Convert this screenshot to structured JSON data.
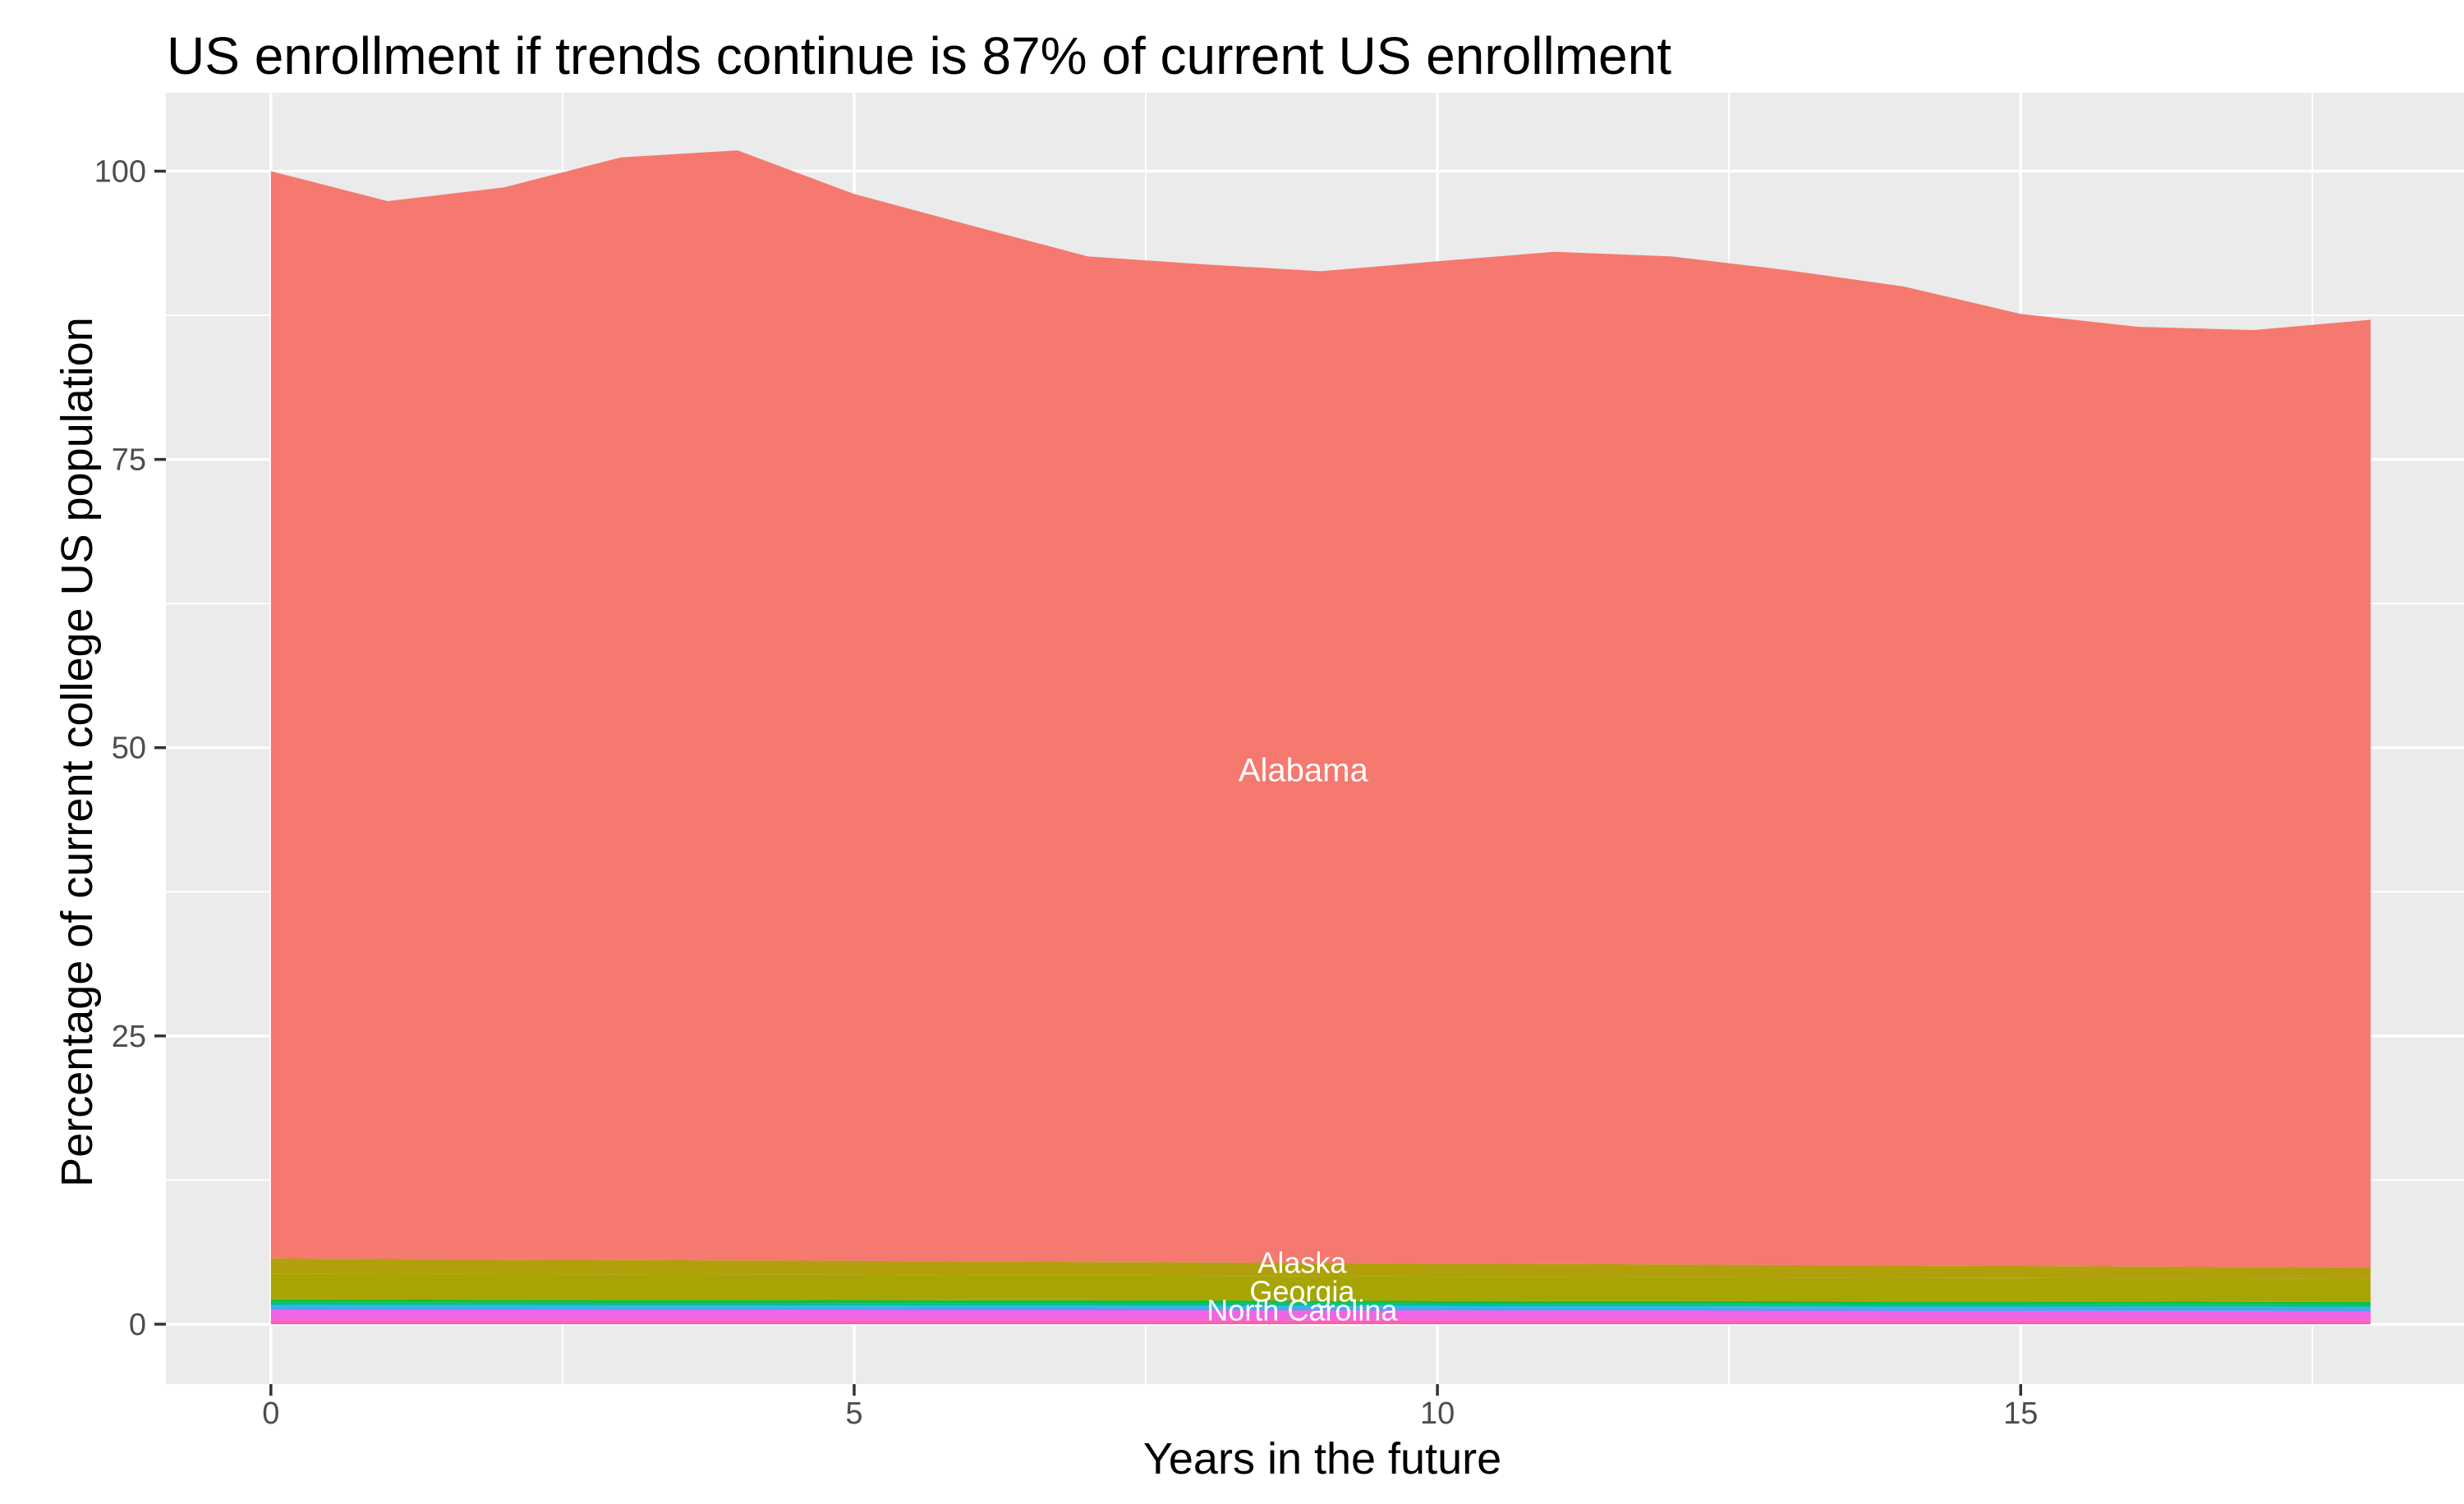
{
  "title": "US enrollment if trends continue is 87% of current US enrollment",
  "axes": {
    "x": {
      "title": "Years in the future",
      "tick_values": [
        0,
        5,
        10,
        15
      ],
      "tick_labels": [
        "0",
        "5",
        "10",
        "15"
      ],
      "minor_tick_values": [
        2.5,
        7.5,
        12.5,
        17.5
      ],
      "panel_range": [
        -0.9,
        18.92
      ]
    },
    "y": {
      "title": "Percentage of current college US population",
      "tick_values": [
        0,
        25,
        50,
        75,
        100
      ],
      "tick_labels": [
        "0",
        "25",
        "50",
        "75",
        "100"
      ],
      "minor_tick_values": [
        12.5,
        37.5,
        62.5,
        87.5
      ],
      "panel_range": [
        -5.2,
        106.8
      ]
    }
  },
  "colors": {
    "panel_bg": "#EBEBEB",
    "grid": "#FFFFFF",
    "tick_mark": "#333333",
    "tick_label": "#4D4D4D",
    "title_text": "#000000",
    "area_label_text": "#FFFFFF"
  },
  "chart_data": {
    "type": "area",
    "stacked": true,
    "title": "US enrollment if trends continue is 87% of current US enrollment",
    "xlabel": "Years in the future",
    "ylabel": "Percentage of current college US population",
    "xlim": [
      0,
      18
    ],
    "ylim": [
      0,
      100
    ],
    "grid": true,
    "legend": false,
    "x": [
      0,
      1,
      2,
      3,
      4,
      5,
      6,
      7,
      8,
      9,
      10,
      11,
      12,
      13,
      14,
      15,
      16,
      17,
      18
    ],
    "series": [
      {
        "name": null,
        "color_key": "pink-band",
        "color": "#FB61AB",
        "values": [
          0.33,
          0.33,
          0.33,
          0.33,
          0.33,
          0.33,
          0.33,
          0.33,
          0.33,
          0.33,
          0.33,
          0.33,
          0.33,
          0.33,
          0.33,
          0.33,
          0.33,
          0.33,
          0.33
        ]
      },
      {
        "name": "North Carolina",
        "color_key": "magenta-band",
        "color": "#F263E6",
        "values": [
          0.92,
          0.91,
          0.91,
          0.9,
          0.9,
          0.89,
          0.88,
          0.88,
          0.87,
          0.86,
          0.86,
          0.85,
          0.85,
          0.84,
          0.83,
          0.83,
          0.82,
          0.82,
          0.81
        ]
      },
      {
        "name": null,
        "color_key": "blue-band",
        "color": "#4D9EF0",
        "values": [
          0.21,
          0.21,
          0.21,
          0.21,
          0.21,
          0.21,
          0.21,
          0.21,
          0.21,
          0.21,
          0.2,
          0.2,
          0.2,
          0.2,
          0.2,
          0.2,
          0.2,
          0.2,
          0.2
        ]
      },
      {
        "name": null,
        "color_key": "cyan-band",
        "color": "#2CB9EA",
        "values": [
          0.21,
          0.21,
          0.2,
          0.2,
          0.2,
          0.2,
          0.19,
          0.19,
          0.19,
          0.19,
          0.18,
          0.18,
          0.18,
          0.17,
          0.17,
          0.17,
          0.17,
          0.16,
          0.16
        ]
      },
      {
        "name": null,
        "color_key": "teal-band",
        "color": "#00BE90",
        "values": [
          0.21,
          0.21,
          0.21,
          0.21,
          0.21,
          0.21,
          0.21,
          0.21,
          0.21,
          0.21,
          0.21,
          0.21,
          0.21,
          0.21,
          0.21,
          0.21,
          0.21,
          0.21,
          0.21
        ]
      },
      {
        "name": null,
        "color_key": "green-band",
        "color": "#14BE3D",
        "values": [
          0.27,
          0.27,
          0.26,
          0.26,
          0.26,
          0.26,
          0.25,
          0.25,
          0.25,
          0.25,
          0.24,
          0.24,
          0.24,
          0.24,
          0.23,
          0.23,
          0.23,
          0.22,
          0.22
        ]
      },
      {
        "name": "Georgia",
        "color_key": "olive-band-lower",
        "color": "#A7A503",
        "values": [
          2.25,
          2.24,
          2.22,
          2.21,
          2.19,
          2.18,
          2.16,
          2.15,
          2.13,
          2.12,
          2.1,
          2.09,
          2.07,
          2.06,
          2.04,
          2.03,
          2.01,
          2.0,
          1.98
        ]
      },
      {
        "name": "Alaska",
        "color_key": "olive-band-upper",
        "color": "#B1A00B",
        "values": [
          1.3,
          1.28,
          1.27,
          1.25,
          1.23,
          1.22,
          1.2,
          1.18,
          1.17,
          1.15,
          1.13,
          1.12,
          1.1,
          1.08,
          1.07,
          1.05,
          1.03,
          1.02,
          1.0
        ]
      },
      {
        "name": "Alabama",
        "color_key": "salmon-band",
        "color": "#F5796F",
        "values": [
          94.3,
          91.74,
          92.99,
          95.63,
          96.28,
          92.52,
          89.87,
          87.21,
          86.56,
          86.0,
          86.94,
          87.79,
          87.43,
          86.28,
          84.92,
          82.57,
          81.51,
          81.26,
          82.2
        ]
      }
    ],
    "stacked_totals": [
      100.0,
      97.4,
      98.6,
      101.2,
      101.8,
      98.0,
      95.3,
      92.6,
      91.9,
      91.3,
      92.2,
      93.0,
      92.6,
      91.4,
      90.0,
      87.6,
      86.5,
      86.2,
      87.1
    ],
    "labels": [
      {
        "text": "Alabama",
        "x": 8.85,
        "y": 48.1,
        "size": 40
      },
      {
        "text": "Alaska",
        "x": 8.84,
        "y": 5.34,
        "size": 36
      },
      {
        "text": "Georgia",
        "x": 8.84,
        "y": 2.85,
        "size": 36
      },
      {
        "text": "North Carolina",
        "x": 8.84,
        "y": 1.2,
        "size": 36
      }
    ]
  }
}
